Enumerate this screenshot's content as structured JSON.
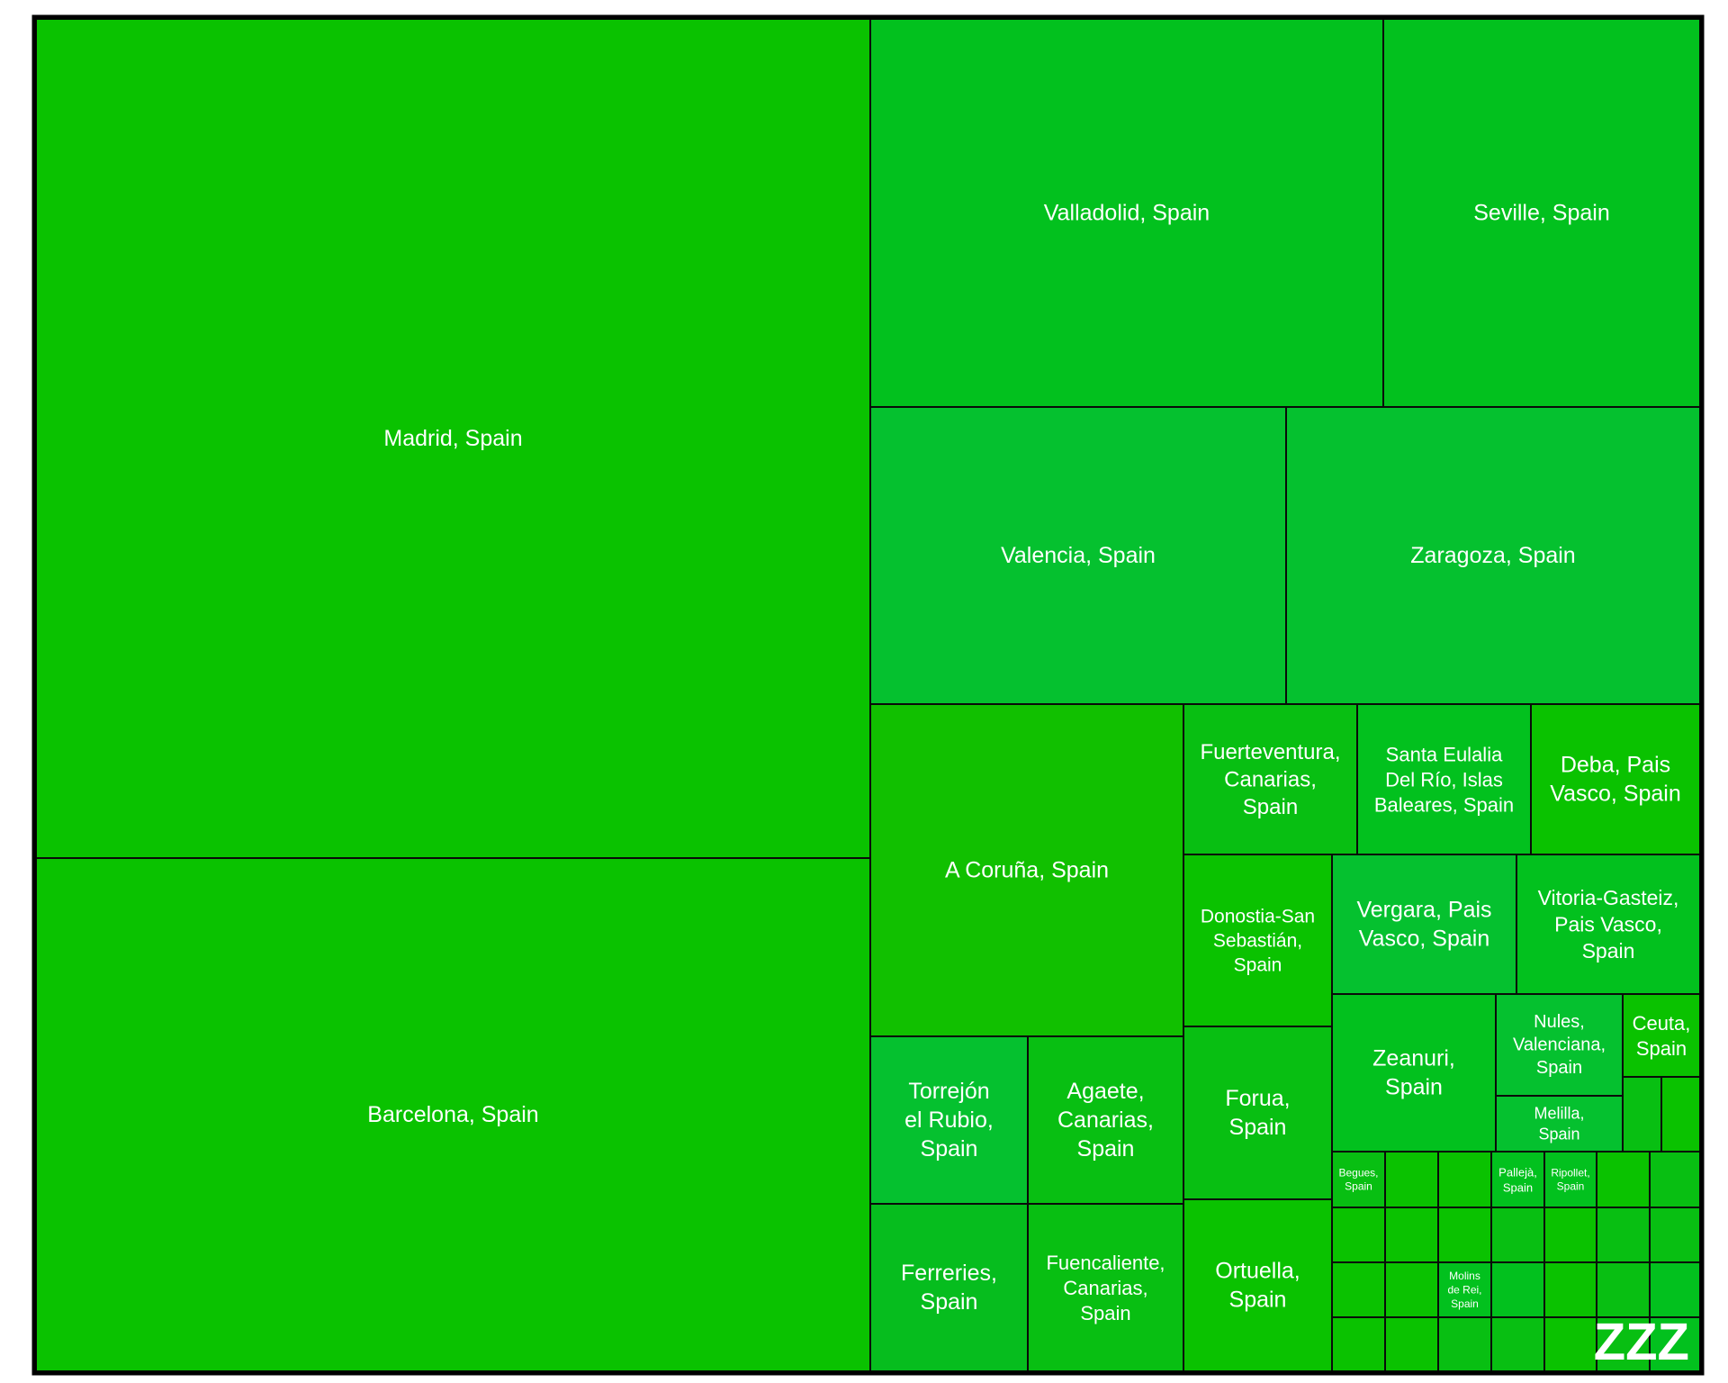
{
  "chart_data": {
    "type": "treemap",
    "title": "",
    "series_name": "",
    "colors": {
      "frame": "#000000",
      "border": "#0a0a0a",
      "shades": [
        "#0ac200",
        "#02c11e",
        "#05c12f",
        "#11c000",
        "#08bf12",
        "#06bd1e",
        "#14b90a"
      ]
    },
    "watermark": "ZZZ",
    "cells": [
      {
        "label": "Madrid, Spain"
      },
      {
        "label": "Barcelona, Spain"
      },
      {
        "label": "Valladolid, Spain"
      },
      {
        "label": "Seville, Spain"
      },
      {
        "label": "Valencia, Spain"
      },
      {
        "label": "Zaragoza, Spain"
      },
      {
        "label": "A Coruña, Spain"
      },
      {
        "label": "Fuerteventura, Canarias, Spain"
      },
      {
        "label": "Santa Eulalia Del Río, Islas Baleares, Spain"
      },
      {
        "label": "Deba, Pais Vasco, Spain"
      },
      {
        "label": "Torrejón el Rubio, Spain"
      },
      {
        "label": "Agaete, Canarias, Spain"
      },
      {
        "label": "Donostia-San Sebastián, Spain"
      },
      {
        "label": "Vergara, Pais Vasco, Spain"
      },
      {
        "label": "Vitoria-Gasteiz, Pais Vasco, Spain"
      },
      {
        "label": "Forua, Spain"
      },
      {
        "label": "Zeanuri, Spain"
      },
      {
        "label": "Nules, Valenciana, Spain"
      },
      {
        "label": "Ceuta, Spain"
      },
      {
        "label": "Melilla, Spain"
      },
      {
        "label": "Ferreries, Spain"
      },
      {
        "label": "Fuencaliente, Canarias, Spain"
      },
      {
        "label": "Ortuella, Spain"
      },
      {
        "label": "Begues, Spain"
      },
      {
        "label": "Pallejà, Spain"
      },
      {
        "label": "Ripollet, Spain"
      },
      {
        "label": "Molins de Rei, Spain"
      }
    ]
  }
}
